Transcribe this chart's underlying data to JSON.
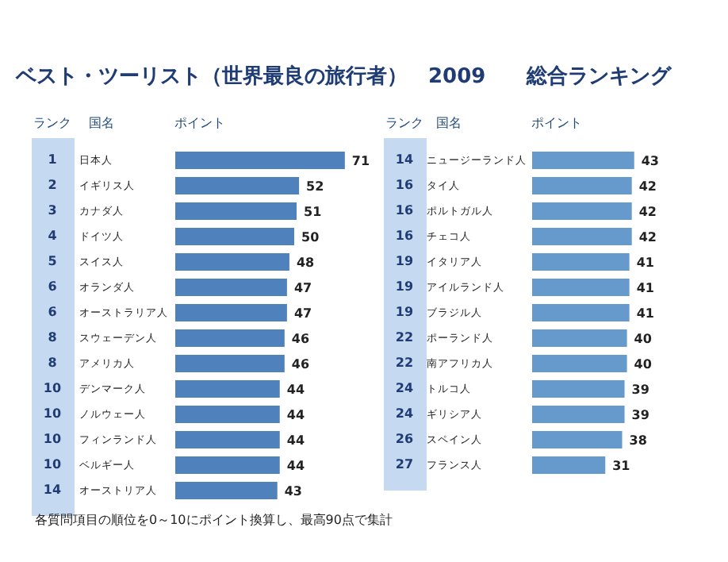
{
  "chart_data": [
    {
      "type": "bar",
      "orientation": "horizontal",
      "title": "ベスト・ツーリスト（世界最良の旅行者）　2009　　総合ランキング",
      "xlabel": "ポイント",
      "data_labels": true,
      "categories": [
        "日本人",
        "イギリス人",
        "カナダ人",
        "ドイツ人",
        "スイス人",
        "オランダ人",
        "オーストラリア人",
        "スウェーデン人",
        "アメリカ人",
        "デンマーク人",
        "ノルウェー人",
        "フィンランド人",
        "ベルギー人",
        "オーストリア人"
      ],
      "values": [
        71,
        52,
        51,
        50,
        48,
        47,
        47,
        46,
        46,
        44,
        44,
        44,
        44,
        43
      ],
      "color": "#4f81bd",
      "annotations": [
        {
          "text": "ランク"
        },
        {
          "text": "国名"
        },
        "1",
        "2",
        "3",
        "4",
        "5",
        "6",
        "6",
        "8",
        "8",
        "10",
        "10",
        "10",
        "10",
        "14",
        {
          "text": "各質問項目の順位を0～10にポイント換算し、最高90点で集計"
        }
      ]
    },
    {
      "type": "bar",
      "orientation": "horizontal",
      "xlabel": "ポイント",
      "data_labels": true,
      "categories": [
        "ニュージーランド人",
        "タイ人",
        "ポルトガル人",
        "チェコ人",
        "イタリア人",
        "アイルランド人",
        "ブラジル人",
        "ポーランド人",
        "南アフリカ人",
        "トルコ人",
        "ギリシア人",
        "スペイン人",
        "フランス人"
      ],
      "values": [
        43,
        42,
        42,
        42,
        41,
        41,
        41,
        40,
        40,
        39,
        39,
        38,
        31
      ],
      "color": "#6699cc",
      "annotations": [
        {
          "text": "ランク"
        },
        {
          "text": "国名"
        },
        "14",
        "16",
        "16",
        "16",
        "19",
        "19",
        "19",
        "22",
        "22",
        "24",
        "24",
        "26",
        "27"
      ]
    }
  ]
}
